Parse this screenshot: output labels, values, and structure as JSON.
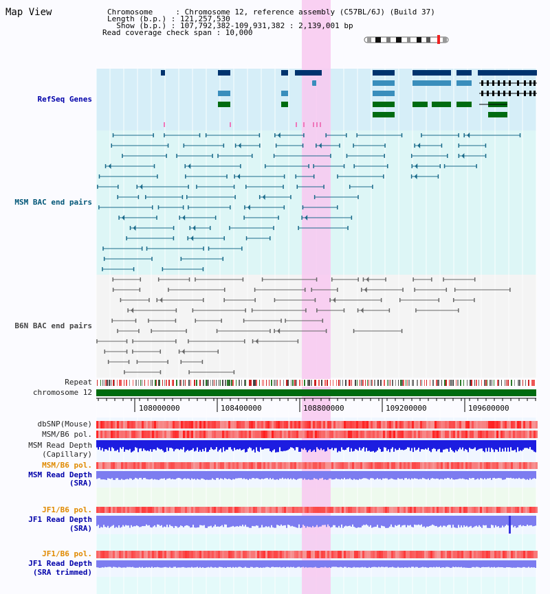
{
  "header": {
    "title": "Map View",
    "info_lines": [
      "Chromosome     : Chromosome 12, reference assembly (C57BL/6J) (Build 37)",
      "Length (b.p.) : 121,257,530",
      "  Show (b.p.) : 107,792,382-109,931,382 : 2,139,001 bp",
      "Read coverage check span : 10,000"
    ]
  },
  "tracks": {
    "refseq_genes": "RefSeq Genes",
    "msm_bac": "MSM BAC end pairs",
    "b6n_bac": "B6N BAC end pairs",
    "repeat": "Repeat",
    "chromosome": "chromosome 12",
    "dbsnp": "dbSNP(Mouse)",
    "msm_b6_pol_1": "MSM/B6 pol.",
    "msm_depth_cap_1": "MSM Read Depth",
    "msm_depth_cap_2": "(Capillary)",
    "msm_b6_pol_2": "MSM/B6 pol.",
    "msm_depth_sra_1": "MSM Read Depth",
    "msm_depth_sra_2": "(SRA)",
    "jf1_b6_pol_1": "JF1/B6 pol.",
    "jf1_depth_sra_1": "JF1 Read Depth",
    "jf1_depth_sra_2": "(SRA)",
    "jf1_b6_pol_2": "JF1/B6 pol.",
    "jf1_depth_trim_1": "JF1 Read Depth",
    "jf1_depth_trim_2": "(SRA trimmed)"
  },
  "axis": {
    "ticks": [
      "108000000",
      "108400000",
      "108800000",
      "109200000",
      "109600000"
    ]
  },
  "colors": {
    "highlight": "#f8c8f0",
    "refseq_bg": "#d6eef8",
    "msm_bg": "#ddf6f6",
    "b6n_bg": "#f2f2f2",
    "gene_dark": "#00336e",
    "gene_mid": "#3a8ebc",
    "gene_green": "#006b10",
    "msm_line": "#1a6a8a",
    "b6n_line": "#666666",
    "chromosome_green": "#006b10",
    "depth_blue": "#1d1de0",
    "depth_light": "#7c7cf0"
  }
}
